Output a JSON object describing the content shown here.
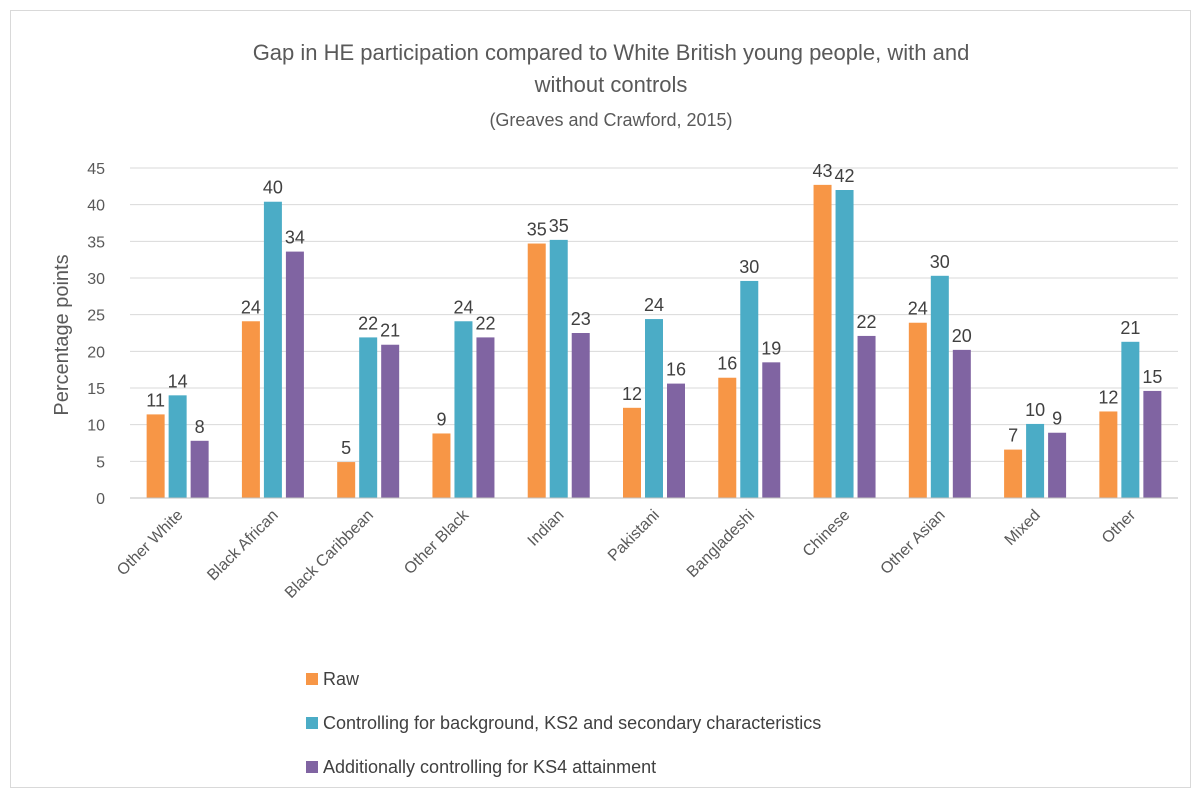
{
  "chart_data": {
    "type": "bar",
    "title": "Gap in HE participation compared to White British young people, with and without controls",
    "title_line1": "Gap in HE participation compared to White British young people, with and",
    "title_line2": "without controls",
    "subtitle": "(Greaves and Crawford, 2015)",
    "xlabel": "",
    "ylabel": "Percentage points",
    "ylim": [
      0,
      45
    ],
    "yticks": [
      0,
      5,
      10,
      15,
      20,
      25,
      30,
      35,
      40,
      45
    ],
    "grid": true,
    "legend_position": "bottom",
    "categories": [
      "Other White",
      "Black African",
      "Black Caribbean",
      "Other Black",
      "Indian",
      "Pakistani",
      "Bangladeshi",
      "Chinese",
      "Other Asian",
      "Mixed",
      "Other"
    ],
    "series": [
      {
        "name": "Raw",
        "color": "#f79646",
        "values": [
          11.4,
          24.1,
          4.9,
          8.8,
          34.7,
          12.3,
          16.4,
          42.7,
          23.9,
          6.6,
          11.8
        ],
        "labels": [
          "11",
          "24",
          "5",
          "9",
          "35",
          "12",
          "16",
          "43",
          "24",
          "7",
          "12"
        ]
      },
      {
        "name": "Controlling for background, KS2 and secondary characteristics",
        "color": "#4bacc6",
        "values": [
          14.0,
          40.4,
          21.9,
          24.1,
          35.2,
          24.4,
          29.6,
          42.0,
          30.3,
          10.1,
          21.3
        ],
        "labels": [
          "14",
          "40",
          "22",
          "24",
          "35",
          "24",
          "30",
          "42",
          "30",
          "10",
          "21"
        ]
      },
      {
        "name": "Additionally controlling for KS4 attainment",
        "color": "#8064a2",
        "values": [
          7.8,
          33.6,
          20.9,
          21.9,
          22.5,
          15.6,
          18.5,
          22.1,
          20.2,
          8.9,
          14.6
        ],
        "labels": [
          "8",
          "34",
          "21",
          "22",
          "23",
          "16",
          "19",
          "22",
          "20",
          "9",
          "15"
        ]
      }
    ]
  }
}
